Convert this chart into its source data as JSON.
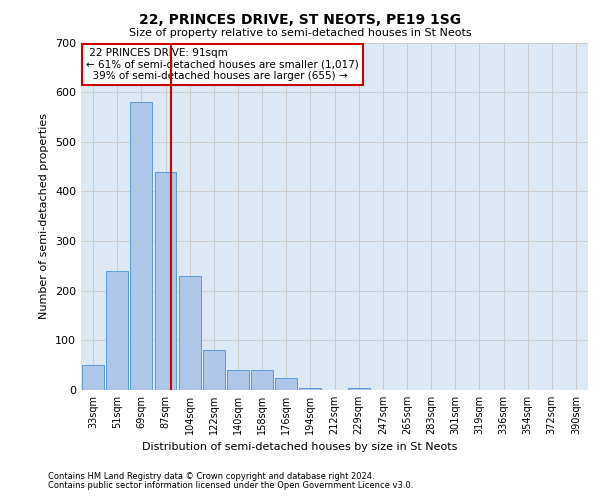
{
  "title1": "22, PRINCES DRIVE, ST NEOTS, PE19 1SG",
  "title2": "Size of property relative to semi-detached houses in St Neots",
  "xlabel": "Distribution of semi-detached houses by size in St Neots",
  "ylabel": "Number of semi-detached properties",
  "categories": [
    "33sqm",
    "51sqm",
    "69sqm",
    "87sqm",
    "104sqm",
    "122sqm",
    "140sqm",
    "158sqm",
    "176sqm",
    "194sqm",
    "212sqm",
    "229sqm",
    "247sqm",
    "265sqm",
    "283sqm",
    "301sqm",
    "319sqm",
    "336sqm",
    "354sqm",
    "372sqm",
    "390sqm"
  ],
  "values": [
    50,
    240,
    580,
    440,
    230,
    80,
    40,
    40,
    25,
    5,
    0,
    5,
    0,
    0,
    0,
    0,
    0,
    0,
    0,
    0,
    0
  ],
  "bar_color": "#aec6e8",
  "bar_edgecolor": "#5b9bd5",
  "property_size": 91,
  "property_label": "22 PRINCES DRIVE: 91sqm",
  "pct_smaller": 61,
  "count_smaller": 1017,
  "pct_larger": 39,
  "count_larger": 655,
  "annotation_box_color": "#ffffff",
  "annotation_box_edgecolor": "#cc0000",
  "vline_color": "#cc0000",
  "ylim": [
    0,
    700
  ],
  "grid_color": "#cccccc",
  "background_color": "#dce9f5",
  "footer1": "Contains HM Land Registry data © Crown copyright and database right 2024.",
  "footer2": "Contains public sector information licensed under the Open Government Licence v3.0."
}
